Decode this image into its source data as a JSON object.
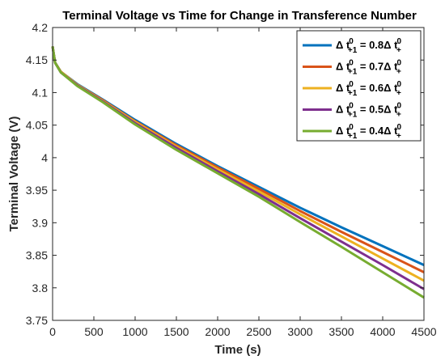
{
  "chart_data": {
    "type": "line",
    "title": "Terminal Voltage vs Time for Change in Transference Number",
    "xlabel": "Time (s)",
    "ylabel": "Terminal Voltage (V)",
    "xlim": [
      0,
      4500
    ],
    "ylim": [
      3.75,
      4.2
    ],
    "xticks": [
      0,
      500,
      1000,
      1500,
      2000,
      2500,
      3000,
      3500,
      4000,
      4500
    ],
    "yticks": [
      3.75,
      3.8,
      3.85,
      3.9,
      3.95,
      4,
      4.05,
      4.1,
      4.15,
      4.2
    ],
    "xtick_labels": [
      "0",
      "500",
      "1000",
      "1500",
      "2000",
      "2500",
      "3000",
      "3500",
      "4000",
      "4500"
    ],
    "ytick_labels": [
      "3.75",
      "3.8",
      "3.85",
      "3.9",
      "3.95",
      "4",
      "4.05",
      "4.1",
      "4.15",
      "4.2"
    ],
    "grid": false,
    "legend_position": "top-right",
    "x": [
      0,
      30,
      100,
      300,
      600,
      1000,
      1500,
      2000,
      2500,
      3000,
      3500,
      4000,
      4500
    ],
    "series": [
      {
        "legend_delta": "Δ t",
        "legend_sup": "0",
        "legend_sub": "+1",
        "legend_value": " = 0.8",
        "legend_delta2": "Δ t",
        "legend_sup2": "0",
        "legend_sub2": "+",
        "color": "#0072BD",
        "values": [
          4.171,
          4.146,
          4.132,
          4.113,
          4.09,
          4.058,
          4.021,
          3.987,
          3.955,
          3.923,
          3.893,
          3.864,
          3.835
        ]
      },
      {
        "legend_delta": "Δ t",
        "legend_sup": "0",
        "legend_sub": "+1",
        "legend_value": " = 0.7",
        "legend_delta2": "Δ t",
        "legend_sup2": "0",
        "legend_sub2": "+",
        "color": "#D95319",
        "values": [
          4.171,
          4.146,
          4.132,
          4.112,
          4.089,
          4.056,
          4.019,
          3.985,
          3.952,
          3.918,
          3.886,
          3.855,
          3.824
        ]
      },
      {
        "legend_delta": "Δ t",
        "legend_sup": "0",
        "legend_sub": "+1",
        "legend_value": " = 0.6",
        "legend_delta2": "Δ t",
        "legend_sup2": "0",
        "legend_sub2": "+",
        "color": "#EDB120",
        "values": [
          4.171,
          4.146,
          4.132,
          4.112,
          4.088,
          4.055,
          4.017,
          3.982,
          3.948,
          3.913,
          3.879,
          3.845,
          3.811
        ]
      },
      {
        "legend_delta": "Δ t",
        "legend_sup": "0",
        "legend_sub": "+1",
        "legend_value": " = 0.5",
        "legend_delta2": "Δ t",
        "legend_sup2": "0",
        "legend_sub2": "+",
        "color": "#7E2F8E",
        "values": [
          4.171,
          4.146,
          4.131,
          4.111,
          4.087,
          4.053,
          4.015,
          3.979,
          3.944,
          3.907,
          3.871,
          3.835,
          3.798
        ]
      },
      {
        "legend_delta": "Δ t",
        "legend_sup": "0",
        "legend_sub": "+1",
        "legend_value": " = 0.4",
        "legend_delta2": "Δ t",
        "legend_sup2": "0",
        "legend_sub2": "+",
        "color": "#77AC30",
        "values": [
          4.171,
          4.146,
          4.131,
          4.11,
          4.086,
          4.051,
          4.012,
          3.976,
          3.94,
          3.901,
          3.863,
          3.824,
          3.785
        ]
      }
    ]
  }
}
